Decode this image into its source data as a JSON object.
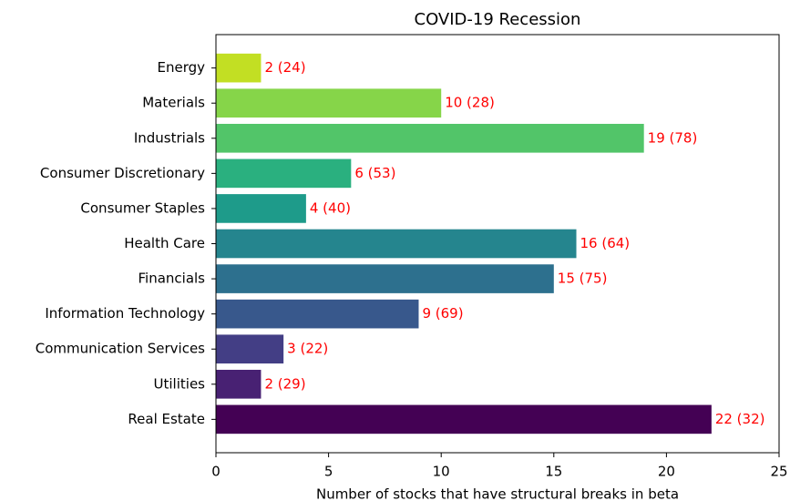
{
  "chart_data": {
    "type": "barh",
    "title": "COVID-19 Recession",
    "xlabel": "Number of stocks that have structural breaks in beta",
    "categories": [
      "Energy",
      "Materials",
      "Industrials",
      "Consumer Discretionary",
      "Consumer Staples",
      "Health Care",
      "Financials",
      "Information Technology",
      "Communication Services",
      "Utilities",
      "Real Estate"
    ],
    "values": [
      2,
      10,
      19,
      6,
      4,
      16,
      15,
      9,
      3,
      2,
      22
    ],
    "value_labels": [
      "2 (24)",
      "10 (28)",
      "19 (78)",
      "6 (53)",
      "4 (40)",
      "16 (64)",
      "15 (75)",
      "9 (69)",
      "3 (22)",
      "2 (29)",
      "22 (32)"
    ],
    "colors": [
      "#c2df23",
      "#86d549",
      "#52c569",
      "#2ab07f",
      "#1e9b8a",
      "#25858e",
      "#2d708e",
      "#38588c",
      "#433e85",
      "#482173",
      "#440154"
    ],
    "value_label_color": "#ff0000",
    "xlim": [
      0,
      25
    ],
    "xticks": [
      0,
      5,
      10,
      15,
      20,
      25
    ]
  }
}
